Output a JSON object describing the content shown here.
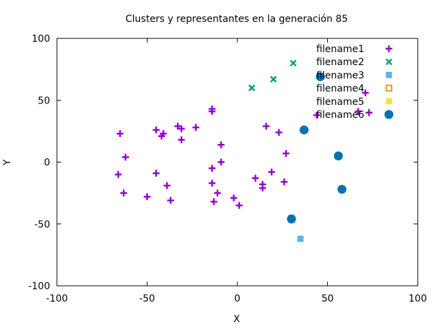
{
  "chart_data": {
    "type": "scatter",
    "title": "Clusters y representantes en la generación 85",
    "xlabel": "X",
    "ylabel": "Y",
    "xlim": [
      -100,
      100
    ],
    "ylim": [
      -100,
      100
    ],
    "xticks": [
      "-100",
      "-50",
      "0",
      "50",
      "100"
    ],
    "yticks": [
      "-100",
      "-50",
      "0",
      "50",
      "100"
    ],
    "grid": false,
    "legend": "top-right, inside",
    "series": [
      {
        "name": "filename1",
        "marker": "plus",
        "color": "#9400d3",
        "points": [
          [
            -65,
            23
          ],
          [
            -62,
            4
          ],
          [
            -66,
            -10
          ],
          [
            -63,
            -25
          ],
          [
            -50,
            -28
          ],
          [
            -45,
            26
          ],
          [
            -42,
            21
          ],
          [
            -41,
            23
          ],
          [
            -45,
            -9
          ],
          [
            -39,
            -19
          ],
          [
            -37,
            -31
          ],
          [
            -33,
            29
          ],
          [
            -31,
            27
          ],
          [
            -31,
            18
          ],
          [
            -23,
            28
          ],
          [
            -14,
            43
          ],
          [
            -14,
            41
          ],
          [
            -9,
            14
          ],
          [
            -14,
            -5
          ],
          [
            -9,
            0
          ],
          [
            -14,
            -17
          ],
          [
            -13,
            -32
          ],
          [
            -11,
            -25
          ],
          [
            -2,
            -29
          ],
          [
            1,
            -35
          ],
          [
            10,
            -13
          ],
          [
            14,
            -18
          ],
          [
            14,
            -21
          ],
          [
            16,
            29
          ],
          [
            19,
            -8
          ],
          [
            23,
            24
          ],
          [
            26,
            -16
          ],
          [
            27,
            7
          ],
          [
            44,
            38
          ],
          [
            67,
            41
          ],
          [
            71,
            56
          ],
          [
            73,
            40
          ]
        ]
      },
      {
        "name": "filename2",
        "marker": "cross",
        "color": "#009e73",
        "points": [
          [
            8,
            60
          ],
          [
            20,
            67
          ],
          [
            31,
            80
          ]
        ]
      },
      {
        "name": "filename3",
        "marker": "square",
        "color": "#56b4e9",
        "points": [
          [
            30,
            -45
          ],
          [
            35,
            -62
          ]
        ]
      },
      {
        "name": "filename4",
        "marker": "open-square",
        "color": "#e69f00",
        "points": []
      },
      {
        "name": "filename5",
        "marker": "square",
        "color": "#f0e442",
        "points": []
      },
      {
        "name": "filename6",
        "marker": "circle",
        "color": "#0072b2",
        "points": [
          [
            46,
            69
          ],
          [
            37,
            26
          ],
          [
            56,
            5
          ],
          [
            58,
            -22
          ],
          [
            30,
            -46
          ]
        ]
      }
    ]
  }
}
